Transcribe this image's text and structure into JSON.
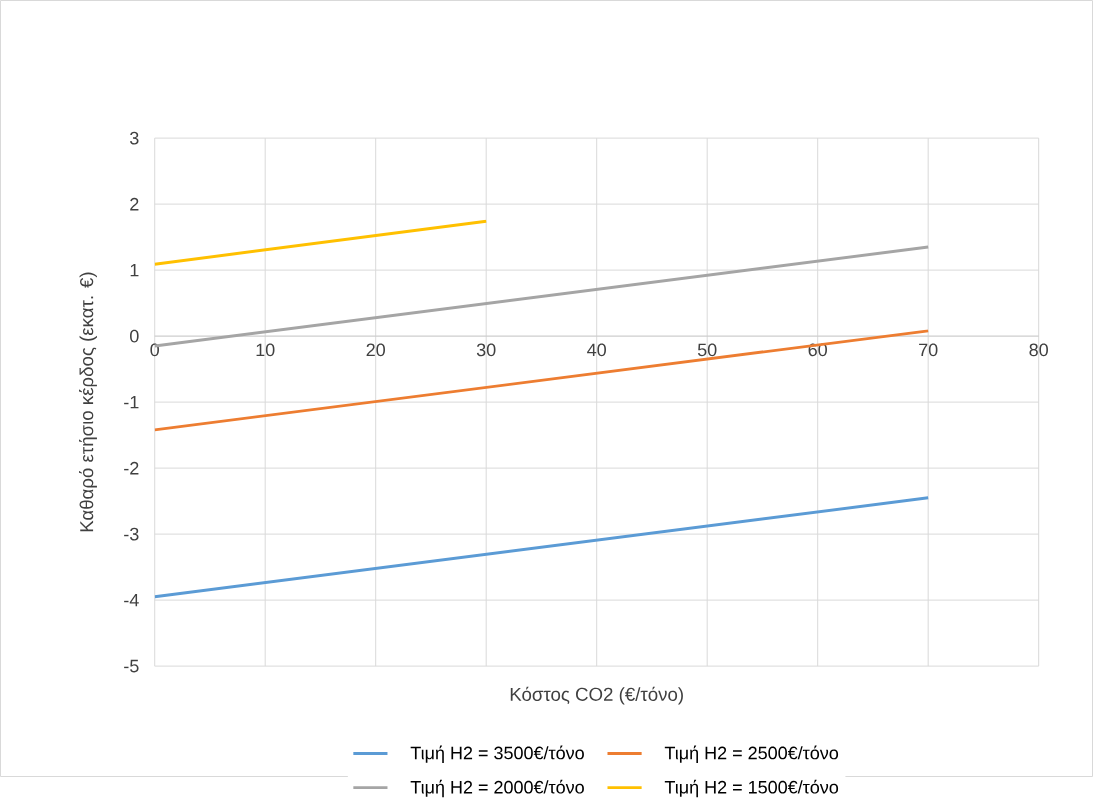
{
  "chart_data": {
    "type": "line",
    "xlabel": "Κόστος CO2 (€/τόνο)",
    "ylabel": "Καθαρό ετήσιο κέρδος (εκατ. €)",
    "xlim": [
      0,
      80
    ],
    "xticks": [
      0,
      10,
      20,
      30,
      40,
      50,
      60,
      70,
      80
    ],
    "ylim": [
      -5,
      3
    ],
    "yticks": [
      -5,
      -4,
      -3,
      -2,
      -1,
      0,
      1,
      2,
      3
    ],
    "grid": true,
    "legend": "bottom",
    "marker": "none",
    "line_style": "solid",
    "series": [
      {
        "name": "Τιμή H2 = 3500€/τόνο",
        "color": "#5b9bd5",
        "x": [
          0,
          70
        ],
        "values": [
          -3.95,
          -2.45
        ]
      },
      {
        "name": "Τιμή H2 = 2500€/τόνο",
        "color": "#ed7d31",
        "x": [
          0,
          70
        ],
        "values": [
          -1.42,
          0.08
        ]
      },
      {
        "name": "Τιμή H2 = 2000€/τόνο",
        "color": "#a5a5a5",
        "x": [
          0,
          70
        ],
        "values": [
          -0.15,
          1.35
        ]
      },
      {
        "name": "Τιμή H2 = 1500€/τόνο",
        "color": "#ffc000",
        "x": [
          0,
          30
        ],
        "values": [
          1.09,
          1.74
        ]
      }
    ]
  }
}
